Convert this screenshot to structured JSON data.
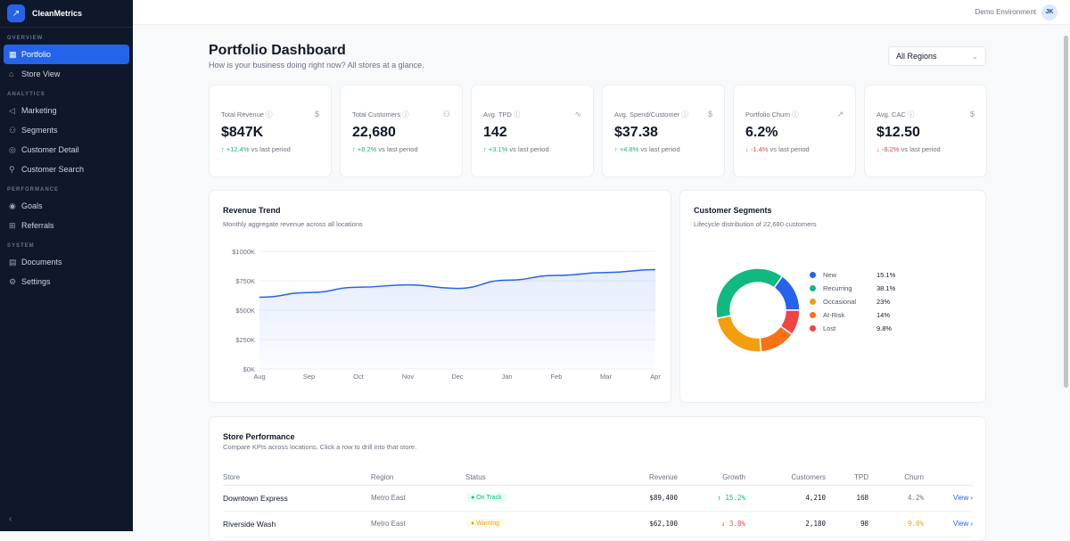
{
  "app": {
    "name": "CleanMetrics"
  },
  "sidebar": {
    "sections": [
      {
        "label": "OVERVIEW",
        "items": [
          {
            "label": "Portfolio",
            "icon": "grid-icon",
            "active": true
          },
          {
            "label": "Store View",
            "icon": "store-icon"
          }
        ]
      },
      {
        "label": "ANALYTICS",
        "items": [
          {
            "label": "Marketing",
            "icon": "megaphone-icon"
          },
          {
            "label": "Segments",
            "icon": "users-icon"
          },
          {
            "label": "Customer Detail",
            "icon": "user-circle-icon"
          },
          {
            "label": "Customer Search",
            "icon": "search-icon"
          }
        ]
      },
      {
        "label": "PERFORMANCE",
        "items": [
          {
            "label": "Goals",
            "icon": "target-icon"
          },
          {
            "label": "Referrals",
            "icon": "gift-icon"
          }
        ]
      },
      {
        "label": "SYSTEM",
        "items": [
          {
            "label": "Documents",
            "icon": "document-icon"
          },
          {
            "label": "Settings",
            "icon": "gear-icon"
          }
        ]
      }
    ]
  },
  "topbar": {
    "environment": "Demo Environment",
    "avatar": "JK"
  },
  "header": {
    "title": "Portfolio Dashboard",
    "subtitle": "How is your business doing right now? All stores at a glance.",
    "region_select": "All Regions"
  },
  "kpis": [
    {
      "label": "Total Revenue",
      "value": "$847K",
      "change": "+12.4%",
      "dir": "up",
      "icon": "dollar-icon",
      "suffix": "vs last period"
    },
    {
      "label": "Total Customers",
      "value": "22,680",
      "change": "+8.2%",
      "dir": "up",
      "icon": "users-icon",
      "suffix": "vs last period"
    },
    {
      "label": "Avg. TPD",
      "value": "142",
      "change": "+3.1%",
      "dir": "up",
      "icon": "activity-icon",
      "suffix": "vs last period"
    },
    {
      "label": "Avg. Spend/Customer",
      "value": "$37.38",
      "change": "+4.8%",
      "dir": "up",
      "icon": "dollar-icon",
      "suffix": "vs last period"
    },
    {
      "label": "Portfolio Churn",
      "value": "6.2%",
      "change": "-1.4%",
      "dir": "down",
      "icon": "trend-icon",
      "suffix": "vs last period"
    },
    {
      "label": "Avg. CAC",
      "value": "$12.50",
      "change": "-8.2%",
      "dir": "down",
      "icon": "dollar-icon",
      "suffix": "vs last period"
    }
  ],
  "chart_data": [
    {
      "type": "area",
      "title": "Revenue Trend",
      "subtitle": "Monthly aggregate revenue across all locations",
      "categories": [
        "Aug",
        "Sep",
        "Oct",
        "Nov",
        "Dec",
        "Jan",
        "Feb",
        "Mar",
        "Apr"
      ],
      "values": [
        610,
        650,
        695,
        715,
        685,
        755,
        795,
        820,
        845
      ],
      "unit": "$K",
      "ylim": [
        0,
        1000
      ],
      "yticks": [
        "$0K",
        "$250K",
        "$500K",
        "$750K",
        "$1000K"
      ],
      "grid": true,
      "color": "#2563eb"
    },
    {
      "type": "pie",
      "title": "Customer Segments",
      "subtitle": "Lifecycle distribution of 22,680 customers",
      "donut": true,
      "slices": [
        {
          "name": "New",
          "value": 15.1,
          "label": "15.1%",
          "color": "#2563eb"
        },
        {
          "name": "Recurring",
          "value": 38.1,
          "label": "38.1%",
          "color": "#10b981"
        },
        {
          "name": "Occasional",
          "value": 23,
          "label": "23%",
          "color": "#f59e0b"
        },
        {
          "name": "At-Risk",
          "value": 14,
          "label": "14%",
          "color": "#f97316"
        },
        {
          "name": "Lost",
          "value": 9.8,
          "label": "9.8%",
          "color": "#ef4444"
        }
      ]
    }
  ],
  "stores": {
    "title": "Store Performance",
    "subtitle": "Compare KPIs across locations. Click a row to drill into that store.",
    "columns": [
      "Store",
      "Region",
      "Status",
      "Revenue",
      "Growth",
      "Customers",
      "TPD",
      "Churn",
      ""
    ],
    "rows": [
      {
        "store": "Downtown Express",
        "region": "Metro East",
        "status": "On Track",
        "revenue": "$89,400",
        "growth": "↑ 15.2%",
        "gdir": "up",
        "customers": "4,210",
        "tpd": "168",
        "churn": "4.2%",
        "action": "View ›"
      },
      {
        "store": "Riverside Wash",
        "region": "Metro East",
        "status": "Warning",
        "revenue": "$62,100",
        "growth": "↓ 3.8%",
        "gdir": "down",
        "customers": "2,180",
        "tpd": "98",
        "churn": "9.8%",
        "action": "View ›"
      }
    ]
  }
}
